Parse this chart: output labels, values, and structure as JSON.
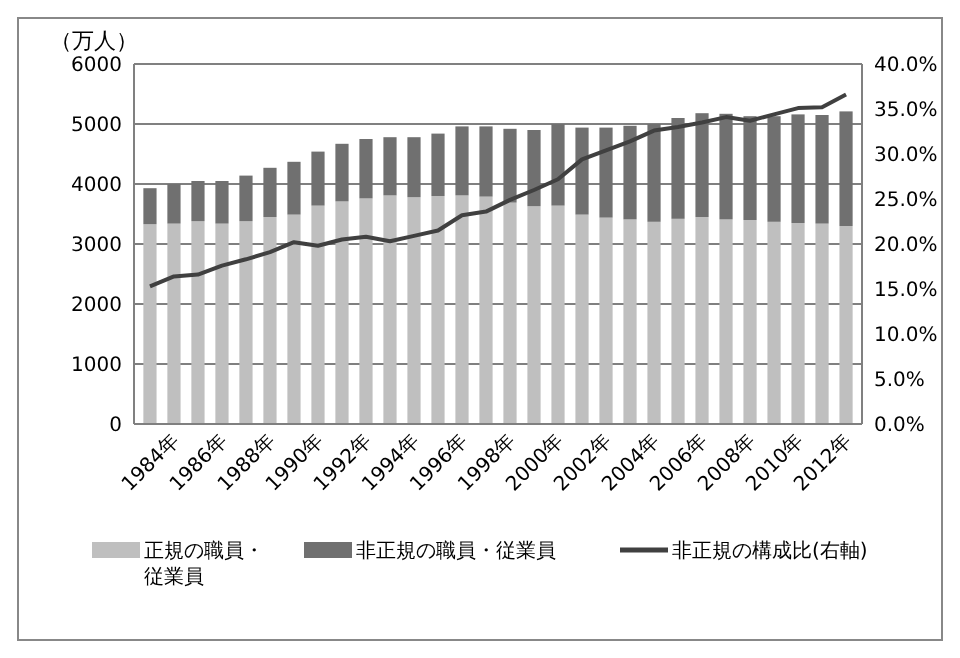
{
  "chart_data": {
    "type": "bar",
    "stacked": true,
    "ylabel": "（万人）",
    "categories": [
      "1984年",
      null,
      "1986年",
      null,
      "1988年",
      null,
      "1990年",
      null,
      "1992年",
      null,
      "1994年",
      null,
      "1996年",
      null,
      "1998年",
      null,
      "2000年",
      null,
      "2002年",
      null,
      "2004年",
      null,
      "2006年",
      null,
      "2008年",
      null,
      "2010年",
      null,
      "2012年",
      null
    ],
    "series": [
      {
        "name": "正規の職員・従業員",
        "color": "#bfbfbf",
        "values": [
          3330,
          3340,
          3380,
          3340,
          3380,
          3450,
          3490,
          3640,
          3710,
          3760,
          3810,
          3780,
          3800,
          3810,
          3790,
          3690,
          3630,
          3640,
          3490,
          3440,
          3410,
          3370,
          3420,
          3450,
          3410,
          3400,
          3370,
          3350,
          3340,
          3300
        ]
      },
      {
        "name": "非正規の職員・従業員",
        "color": "#707070",
        "values": [
          600,
          660,
          670,
          710,
          760,
          820,
          880,
          900,
          960,
          990,
          970,
          1000,
          1040,
          1150,
          1170,
          1230,
          1270,
          1360,
          1450,
          1500,
          1560,
          1630,
          1680,
          1730,
          1760,
          1730,
          1760,
          1810,
          1810,
          1910
        ]
      },
      {
        "name": "非正規の構成比(右軸)",
        "type": "line",
        "axis": "y2",
        "color": "#404040",
        "values": [
          15.3,
          16.4,
          16.6,
          17.6,
          18.3,
          19.1,
          20.2,
          19.8,
          20.5,
          20.8,
          20.3,
          20.9,
          21.5,
          23.2,
          23.6,
          24.9,
          26.0,
          27.2,
          29.4,
          30.4,
          31.4,
          32.6,
          33.0,
          33.5,
          34.1,
          33.7,
          34.4,
          35.1,
          35.2,
          36.6
        ]
      }
    ],
    "ylim": [
      0,
      6000
    ],
    "yticks": [
      0,
      1000,
      2000,
      3000,
      4000,
      5000,
      6000
    ],
    "y2lim": [
      0,
      40
    ],
    "y2ticks": [
      {
        "value": 0,
        "label": "0.0%"
      },
      {
        "value": 5,
        "label": "5.0%"
      },
      {
        "value": 10,
        "label": "10.0%"
      },
      {
        "value": 15,
        "label": "15.0%"
      },
      {
        "value": 20,
        "label": "20.0%"
      },
      {
        "value": 25,
        "label": "25.0%"
      },
      {
        "value": 30,
        "label": "30.0%"
      },
      {
        "value": 35,
        "label": "35.0%"
      },
      {
        "value": 40,
        "label": "40.0%"
      }
    ],
    "grid": "y",
    "legend": "bottom",
    "marker": "none",
    "line_style": "solid"
  }
}
